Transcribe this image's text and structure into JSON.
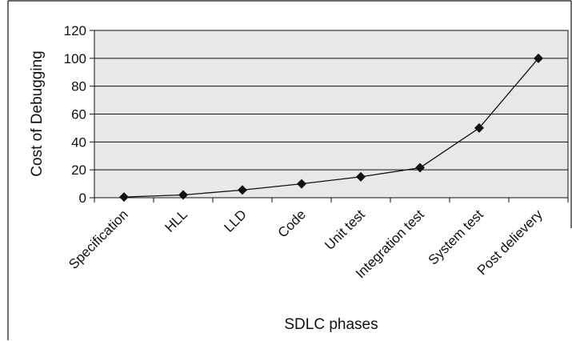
{
  "chart_data": {
    "type": "line",
    "title": "",
    "xlabel": "SDLC phases",
    "ylabel": "Cost of Debugging",
    "ylim": [
      0,
      120
    ],
    "yticks": [
      0,
      20,
      40,
      60,
      80,
      100,
      120
    ],
    "grid": "horizontal",
    "legend": "none",
    "plot_background": "#e8e8e8",
    "line_color": "#111111",
    "marker": "diamond",
    "categories": [
      "Specification",
      "HLL",
      "LLD",
      "Code",
      "Unit test",
      "Integration test",
      "System test",
      "Post delievery"
    ],
    "series": [
      {
        "values": [
          0.5,
          2,
          5.5,
          10,
          15,
          21.5,
          50,
          100
        ]
      }
    ]
  }
}
